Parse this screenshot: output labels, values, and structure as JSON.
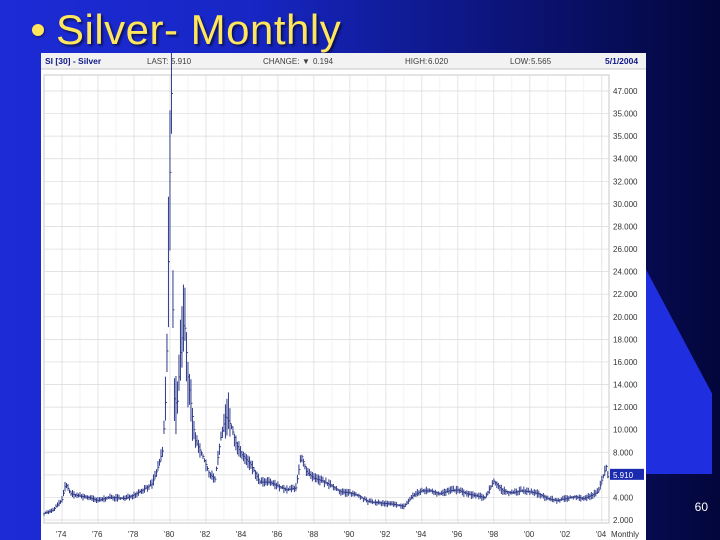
{
  "slide": {
    "title": "Silver- Monthly",
    "page_number": "60"
  },
  "chart_header": {
    "symbol": "SI [30] - Silver",
    "last_label": "LAST:",
    "last_value": "5.910",
    "change_label": "CHANGE:",
    "change_arrow": "▼",
    "change_value": "0.194",
    "high_label": "HIGH:",
    "high_value": "6.020",
    "low_label": "LOW:",
    "low_value": "5.565",
    "date": "5/1/2004"
  },
  "colors": {
    "bars": "#2f3b8a",
    "grid": "#d9d9d9",
    "last_box": "#1b2bb0",
    "up_arrow": "#1b2bb0"
  },
  "chart_data": {
    "type": "ohlc",
    "ylim": [
      2,
      48
    ],
    "y_ticks": [
      "47.000",
      "35.000",
      "35.000",
      "34.000",
      "32.000",
      "30.000",
      "28.000",
      "26.000",
      "24.000",
      "22.000",
      "20.000",
      "18.000",
      "16.000",
      "14.000",
      "12.000",
      "10.000",
      "8.000",
      "5.910",
      "4.000",
      "2.000"
    ],
    "x_ticks": [
      "'74",
      "'76",
      "'78",
      "'80",
      "'82",
      "'84",
      "'86",
      "'88",
      "'90",
      "'92",
      "'94",
      "'96",
      "'98",
      "'00",
      "'02",
      "'04",
      "Monthly"
    ],
    "last_value": 5.91,
    "x_range": [
      1973.0,
      2004.4
    ],
    "anchors": [
      [
        1973.0,
        3.0
      ],
      [
        1973.5,
        3.3
      ],
      [
        1974.0,
        4.4
      ],
      [
        1974.2,
        6.0
      ],
      [
        1974.5,
        5.0
      ],
      [
        1974.9,
        4.8
      ],
      [
        1975.5,
        4.6
      ],
      [
        1976.0,
        4.3
      ],
      [
        1976.5,
        4.6
      ],
      [
        1977.0,
        4.6
      ],
      [
        1977.5,
        4.5
      ],
      [
        1978.0,
        4.9
      ],
      [
        1978.5,
        5.4
      ],
      [
        1979.0,
        6.0
      ],
      [
        1979.3,
        7.5
      ],
      [
        1979.6,
        9.5
      ],
      [
        1979.8,
        16.0
      ],
      [
        1980.0,
        38.0
      ],
      [
        1980.08,
        47.0
      ],
      [
        1980.2,
        15.0
      ],
      [
        1980.4,
        14.0
      ],
      [
        1980.6,
        20.0
      ],
      [
        1980.8,
        23.0
      ],
      [
        1981.0,
        17.0
      ],
      [
        1981.4,
        10.5
      ],
      [
        1981.8,
        9.0
      ],
      [
        1982.2,
        7.0
      ],
      [
        1982.5,
        6.5
      ],
      [
        1982.8,
        10.5
      ],
      [
        1983.1,
        13.0
      ],
      [
        1983.4,
        12.0
      ],
      [
        1983.7,
        10.0
      ],
      [
        1984.0,
        9.0
      ],
      [
        1984.5,
        8.0
      ],
      [
        1985.0,
        6.2
      ],
      [
        1985.5,
        6.2
      ],
      [
        1986.0,
        5.8
      ],
      [
        1986.5,
        5.4
      ],
      [
        1987.0,
        5.6
      ],
      [
        1987.3,
        9.0
      ],
      [
        1987.6,
        7.2
      ],
      [
        1988.0,
        6.6
      ],
      [
        1988.5,
        6.3
      ],
      [
        1989.0,
        5.8
      ],
      [
        1989.5,
        5.2
      ],
      [
        1990.0,
        5.1
      ],
      [
        1990.5,
        4.8
      ],
      [
        1991.0,
        4.2
      ],
      [
        1991.5,
        4.1
      ],
      [
        1992.0,
        4.0
      ],
      [
        1992.5,
        3.9
      ],
      [
        1993.0,
        3.7
      ],
      [
        1993.5,
        4.8
      ],
      [
        1994.0,
        5.3
      ],
      [
        1994.5,
        5.3
      ],
      [
        1995.0,
        5.0
      ],
      [
        1995.5,
        5.3
      ],
      [
        1996.0,
        5.4
      ],
      [
        1996.5,
        5.0
      ],
      [
        1997.0,
        4.8
      ],
      [
        1997.5,
        4.6
      ],
      [
        1998.0,
        6.3
      ],
      [
        1998.5,
        5.3
      ],
      [
        1999.0,
        5.1
      ],
      [
        1999.5,
        5.3
      ],
      [
        2000.0,
        5.2
      ],
      [
        2000.5,
        5.0
      ],
      [
        2001.0,
        4.5
      ],
      [
        2001.5,
        4.3
      ],
      [
        2002.0,
        4.5
      ],
      [
        2002.5,
        4.7
      ],
      [
        2003.0,
        4.5
      ],
      [
        2003.5,
        4.9
      ],
      [
        2003.8,
        5.2
      ],
      [
        2004.0,
        6.4
      ],
      [
        2004.25,
        7.8
      ],
      [
        2004.4,
        5.9
      ]
    ]
  }
}
